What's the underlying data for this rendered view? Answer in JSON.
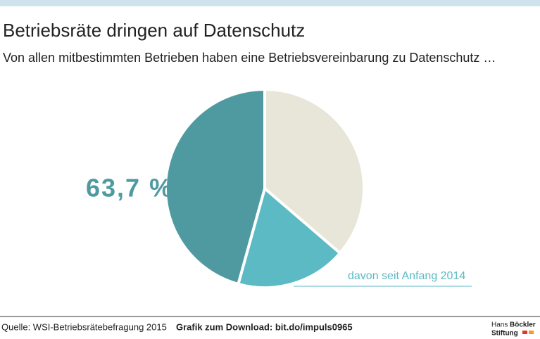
{
  "chart_data": {
    "type": "pie",
    "title": "Betriebsräte dringen auf Datenschutz",
    "subtitle": "Von allen mitbestimmten Betrieben haben eine Betriebsvereinbarung zu Datenschutz …",
    "categories": [
      null,
      "davon seit Anfang 2014",
      null
    ],
    "values": [
      36.3,
      18,
      45.7
    ],
    "colors": [
      "#e8e6d8",
      "#5bbac4",
      "#4e9aa0"
    ],
    "annotation": "63,7 %"
  },
  "footer": {
    "source": "Quelle: WSI-Betriebsrätebefragung 2015",
    "download": "Grafik zum Download: bit.do/impuls0965",
    "logo": [
      "Hans",
      "Böckler",
      "Stiftung"
    ]
  }
}
